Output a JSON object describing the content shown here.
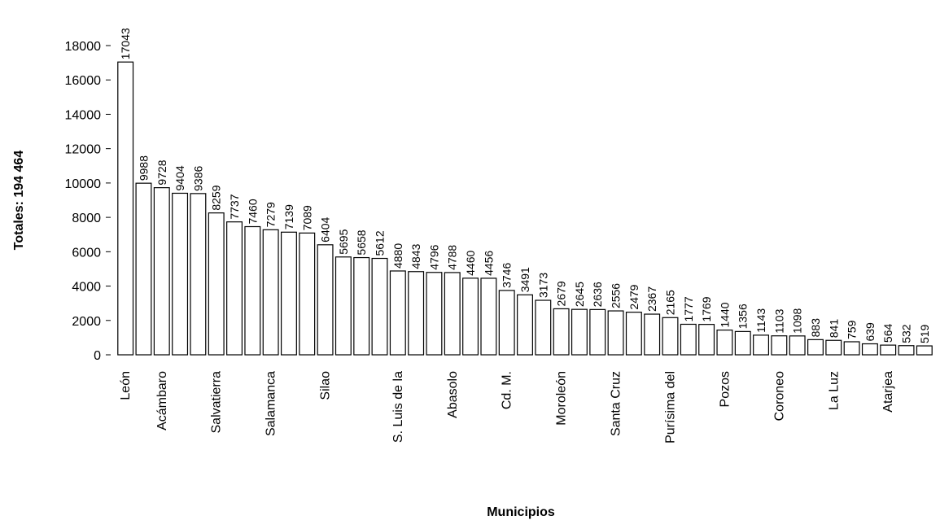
{
  "chart_data": {
    "type": "bar",
    "ylabel": "Totales: 194 464",
    "xlabel": "Municipios",
    "ylim": [
      0,
      18000
    ],
    "yticks": [
      0,
      2000,
      4000,
      6000,
      8000,
      10000,
      12000,
      14000,
      16000,
      18000
    ],
    "grid": false,
    "legend": "none",
    "values": [
      17043,
      9988,
      9728,
      9404,
      9386,
      8259,
      7737,
      7460,
      7279,
      7139,
      7089,
      6404,
      5695,
      5658,
      5612,
      4880,
      4843,
      4796,
      4788,
      4460,
      4456,
      3746,
      3491,
      3173,
      2679,
      2645,
      2636,
      2556,
      2479,
      2367,
      2165,
      1777,
      1769,
      1440,
      1356,
      1143,
      1103,
      1098,
      883,
      841,
      759,
      639,
      564,
      532,
      519
    ],
    "categories": [
      "León",
      "",
      "Acámbaro",
      "",
      "",
      "Salvatierra",
      "",
      "",
      "Salamanca",
      "",
      "",
      "Silao",
      "",
      "",
      "",
      "S. Luis de la",
      "",
      "",
      "Abasolo",
      "",
      "",
      "Cd. M.",
      "",
      "",
      "Moroleón",
      "",
      "",
      "Santa Cruz",
      "",
      "",
      "Purísima del",
      "",
      "",
      "Pozos",
      "",
      "",
      "Coroneo",
      "",
      "",
      "La Luz",
      "",
      "",
      "Atarjea",
      "",
      ""
    ]
  },
  "colors": {
    "bar_fill": "#ffffff",
    "bar_stroke": "#000000"
  }
}
